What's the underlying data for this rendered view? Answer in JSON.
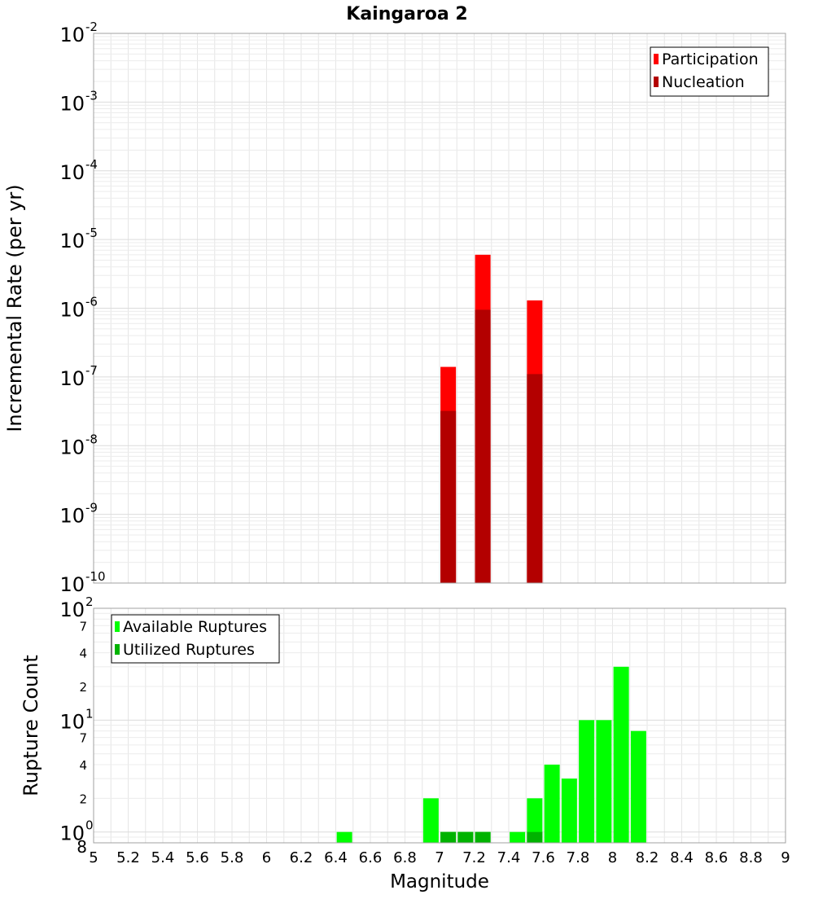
{
  "title": "Kaingaroa 2",
  "chart_data": [
    {
      "type": "bar",
      "id": "rate",
      "ylabel": "Incremental Rate (per yr)",
      "yscale": "log",
      "ylim": [
        1e-10,
        0.01
      ],
      "xlim": [
        5,
        9
      ],
      "grid": true,
      "legend_position": "top-right",
      "y_ticks": [
        {
          "v": 1e-10,
          "base": "10",
          "exp": "-10"
        },
        {
          "v": 1e-09,
          "base": "10",
          "exp": "-9"
        },
        {
          "v": 1e-08,
          "base": "10",
          "exp": "-8"
        },
        {
          "v": 1e-07,
          "base": "10",
          "exp": "-7"
        },
        {
          "v": 1e-06,
          "base": "10",
          "exp": "-6"
        },
        {
          "v": 1e-05,
          "base": "10",
          "exp": "-5"
        },
        {
          "v": 0.0001,
          "base": "10",
          "exp": "-4"
        },
        {
          "v": 0.001,
          "base": "10",
          "exp": "-3"
        },
        {
          "v": 0.01,
          "base": "10",
          "exp": "-2"
        }
      ],
      "series": [
        {
          "name": "Participation",
          "color": "#ff0000",
          "points": [
            {
              "x": 7.05,
              "y": 1.4e-07
            },
            {
              "x": 7.25,
              "y": 6e-06
            },
            {
              "x": 7.55,
              "y": 1.3e-06
            }
          ]
        },
        {
          "name": "Nucleation",
          "color": "#b30000",
          "points": [
            {
              "x": 7.05,
              "y": 3.2e-08
            },
            {
              "x": 7.25,
              "y": 9.5e-07
            },
            {
              "x": 7.55,
              "y": 1.1e-07
            }
          ]
        }
      ]
    },
    {
      "type": "bar",
      "id": "count",
      "ylabel": "Rupture Count",
      "xlabel": "Magnitude",
      "yscale": "log",
      "ylim": [
        0.8,
        100
      ],
      "xlim": [
        5,
        9
      ],
      "grid": true,
      "legend_position": "top-left",
      "y_ticks": [
        {
          "v": 0.8,
          "base": "8",
          "exp": ""
        },
        {
          "v": 1,
          "base": "10",
          "exp": "0"
        },
        {
          "v": 2,
          "base": "2",
          "exp": ""
        },
        {
          "v": 4,
          "base": "4",
          "exp": ""
        },
        {
          "v": 7,
          "base": "7",
          "exp": ""
        },
        {
          "v": 10,
          "base": "10",
          "exp": "1"
        },
        {
          "v": 20,
          "base": "2",
          "exp": ""
        },
        {
          "v": 40,
          "base": "4",
          "exp": ""
        },
        {
          "v": 70,
          "base": "7",
          "exp": ""
        },
        {
          "v": 100,
          "base": "10",
          "exp": "2"
        }
      ],
      "x_ticks": [
        "5",
        "5.2",
        "5.4",
        "5.6",
        "5.8",
        "6",
        "6.2",
        "6.4",
        "6.6",
        "6.8",
        "7",
        "7.2",
        "7.4",
        "7.6",
        "7.8",
        "8",
        "8.2",
        "8.4",
        "8.6",
        "8.8",
        "9"
      ],
      "series": [
        {
          "name": "Available Ruptures",
          "color": "#00ff00",
          "points": [
            {
              "x": 6.45,
              "y": 1
            },
            {
              "x": 6.95,
              "y": 2
            },
            {
              "x": 7.05,
              "y": 1
            },
            {
              "x": 7.15,
              "y": 1
            },
            {
              "x": 7.25,
              "y": 1
            },
            {
              "x": 7.45,
              "y": 1
            },
            {
              "x": 7.55,
              "y": 2
            },
            {
              "x": 7.65,
              "y": 4
            },
            {
              "x": 7.75,
              "y": 3
            },
            {
              "x": 7.85,
              "y": 10
            },
            {
              "x": 7.95,
              "y": 10
            },
            {
              "x": 8.05,
              "y": 30
            },
            {
              "x": 8.15,
              "y": 8
            }
          ]
        },
        {
          "name": "Utilized Ruptures",
          "color": "#00b300",
          "points": [
            {
              "x": 7.05,
              "y": 1
            },
            {
              "x": 7.15,
              "y": 1
            },
            {
              "x": 7.25,
              "y": 1
            },
            {
              "x": 7.55,
              "y": 1
            }
          ]
        }
      ]
    }
  ]
}
